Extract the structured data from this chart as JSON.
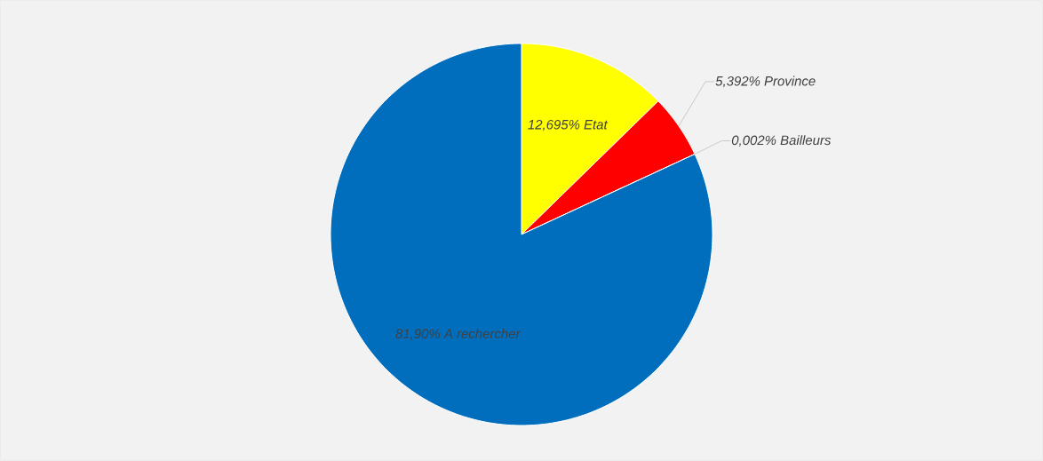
{
  "chart_data": {
    "type": "pie",
    "categories": [
      "Etat",
      "Province",
      "Bailleurs",
      "A rechercher"
    ],
    "values": [
      12.695,
      5.392,
      0.002,
      81.9
    ],
    "value_labels": [
      "12,695%",
      "5,392%",
      "0,002%",
      "81,90%"
    ],
    "colors": [
      "#ffff00",
      "#ff0000",
      "#0070c0",
      "#006ebd"
    ]
  }
}
